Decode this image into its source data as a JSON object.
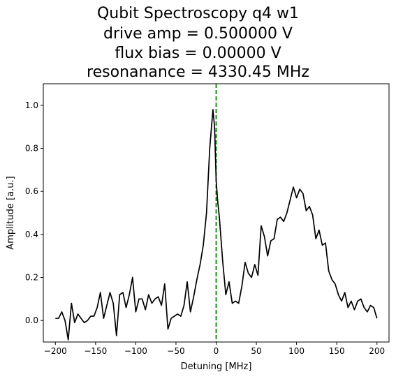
{
  "chart_data": {
    "type": "line",
    "title": [
      "Qubit Spectroscopy q4 w1",
      "drive amp = 0.500000 V",
      "flux bias = 0.00000 V",
      "resonanance = 4330.45 MHz"
    ],
    "xlabel": "Detuning [MHz]",
    "ylabel": "Amplitude [a.u.]",
    "xlim": [
      -215,
      215
    ],
    "ylim": [
      -0.1,
      1.1
    ],
    "x_ticks": [
      -200,
      -150,
      -100,
      -50,
      0,
      50,
      100,
      150,
      200
    ],
    "x_tick_labels": [
      "−200",
      "−150",
      "−100",
      "−50",
      "0",
      "50",
      "100",
      "150",
      "200"
    ],
    "y_ticks": [
      0.0,
      0.2,
      0.4,
      0.6,
      0.8,
      1.0
    ],
    "y_tick_labels": [
      "0.0",
      "0.2",
      "0.4",
      "0.6",
      "0.8",
      "1.0"
    ],
    "grid": false,
    "vline": {
      "x": 0,
      "color": "#008000",
      "style": "dashed"
    },
    "series": [
      {
        "color": "#000000",
        "x": [
          -200,
          -196,
          -192,
          -188,
          -184,
          -180,
          -176,
          -172,
          -168,
          -164,
          -160,
          -156,
          -152,
          -148,
          -144,
          -140,
          -136,
          -132,
          -128,
          -124,
          -120,
          -116,
          -112,
          -108,
          -104,
          -100,
          -96,
          -92,
          -88,
          -84,
          -80,
          -76,
          -72,
          -68,
          -64,
          -60,
          -56,
          -52,
          -48,
          -44,
          -40,
          -36,
          -32,
          -28,
          -24,
          -20,
          -16,
          -12,
          -8,
          -4,
          -2,
          0,
          2,
          4,
          8,
          12,
          16,
          20,
          24,
          28,
          32,
          36,
          40,
          44,
          48,
          52,
          56,
          60,
          64,
          68,
          72,
          76,
          80,
          84,
          88,
          92,
          96,
          100,
          104,
          108,
          112,
          116,
          120,
          124,
          128,
          132,
          136,
          140,
          144,
          148,
          152,
          156,
          160,
          164,
          168,
          172,
          176,
          180,
          184,
          188,
          192,
          196,
          200
        ],
        "y": [
          0.01,
          0.01,
          0.04,
          0.0,
          -0.09,
          0.08,
          -0.01,
          0.03,
          0.01,
          -0.01,
          0.0,
          0.02,
          0.02,
          0.06,
          0.13,
          0.01,
          0.07,
          0.13,
          0.08,
          -0.07,
          0.12,
          0.13,
          0.06,
          0.12,
          0.2,
          0.04,
          0.1,
          0.1,
          0.05,
          0.12,
          0.08,
          0.1,
          0.11,
          0.07,
          0.17,
          -0.04,
          0.01,
          0.02,
          0.03,
          0.02,
          0.07,
          0.18,
          0.04,
          0.11,
          0.19,
          0.26,
          0.35,
          0.5,
          0.8,
          0.98,
          0.9,
          0.65,
          0.55,
          0.48,
          0.28,
          0.12,
          0.18,
          0.08,
          0.09,
          0.08,
          0.16,
          0.27,
          0.22,
          0.2,
          0.26,
          0.21,
          0.44,
          0.39,
          0.3,
          0.37,
          0.38,
          0.47,
          0.48,
          0.46,
          0.5,
          0.56,
          0.62,
          0.57,
          0.61,
          0.59,
          0.51,
          0.53,
          0.49,
          0.38,
          0.42,
          0.35,
          0.36,
          0.23,
          0.19,
          0.17,
          0.12,
          0.09,
          0.13,
          0.06,
          0.09,
          0.05,
          0.09,
          0.1,
          0.06,
          0.04,
          0.07,
          0.06,
          0.01
        ]
      }
    ]
  }
}
